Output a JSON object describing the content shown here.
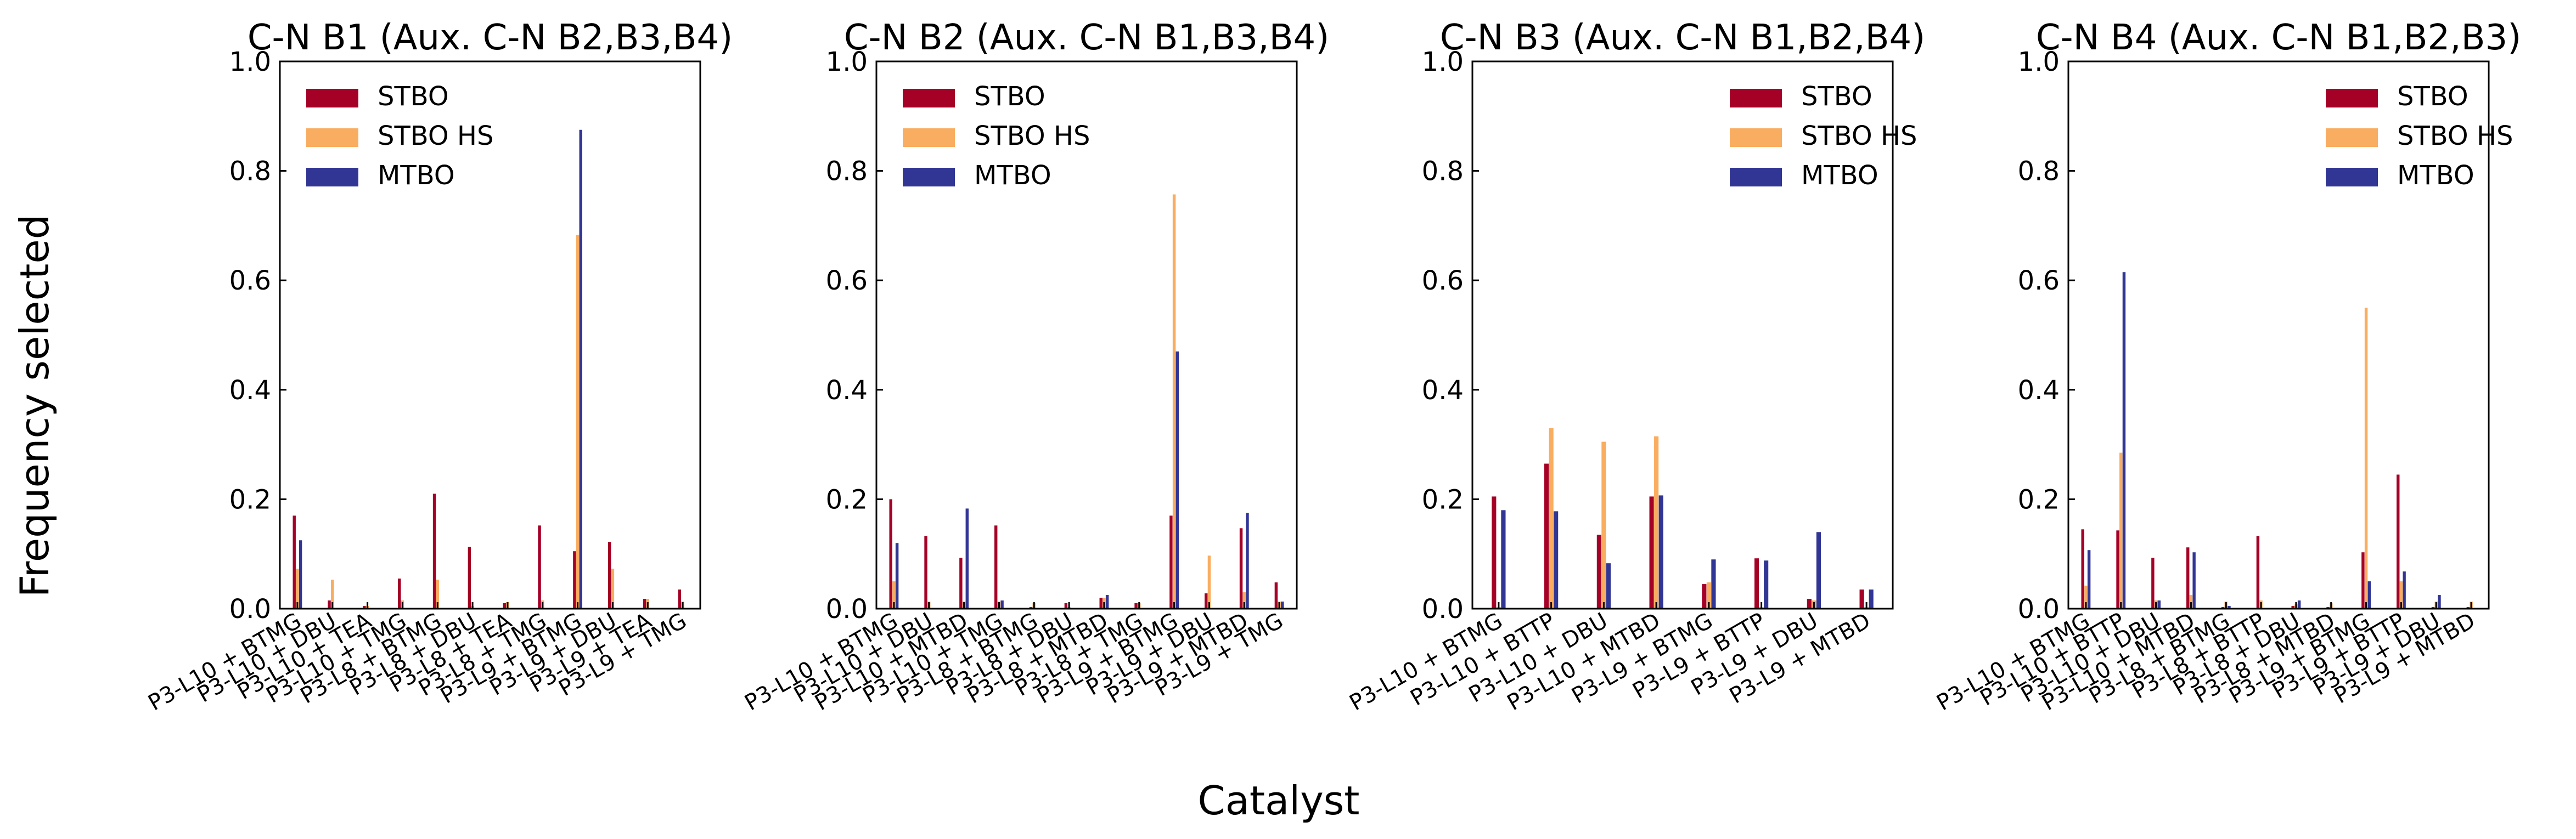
{
  "figure": {
    "ylabel": "Frequency selected",
    "xlabel": "Catalyst"
  },
  "colors": {
    "STBO": "#a50026",
    "STBO HS": "#f9ad60",
    "MTBO": "#313695"
  },
  "chart_data": [
    {
      "type": "bar",
      "title": "C-N B1 (Aux. C-N B2,B3,B4)",
      "ylim": [
        0,
        1.0
      ],
      "yticks": [
        "0.0",
        "0.2",
        "0.4",
        "0.6",
        "0.8",
        "1.0"
      ],
      "legend_position": "upper-left",
      "categories": [
        "P3-L10 + BTMG",
        "P3-L10 + DBU",
        "P3-L10 + TEA",
        "P3-L10 + TMG",
        "P3-L8 + BTMG",
        "P3-L8 + DBU",
        "P3-L8 + TEA",
        "P3-L8 + TMG",
        "P3-L9 + BTMG",
        "P3-L9 + DBU",
        "P3-L9 + TEA",
        "P3-L9 + TMG"
      ],
      "series": [
        {
          "name": "STBO",
          "values": [
            0.17,
            0.015,
            0.005,
            0.055,
            0.21,
            0.113,
            0.01,
            0.152,
            0.105,
            0.122,
            0.018,
            0.035
          ]
        },
        {
          "name": "STBO HS",
          "values": [
            0.073,
            0.053,
            0.005,
            0.015,
            0.053,
            0.005,
            0.012,
            0.015,
            0.683,
            0.073,
            0.018,
            0.013
          ]
        },
        {
          "name": "MTBO",
          "values": [
            0.125,
            0.0,
            0.0,
            0.0,
            0.0,
            0.0,
            0.0,
            0.0,
            0.875,
            0.0,
            0.0,
            0.0
          ]
        }
      ]
    },
    {
      "type": "bar",
      "title": "C-N B2 (Aux. C-N B1,B3,B4)",
      "ylim": [
        0,
        1.0
      ],
      "yticks": [
        "0.0",
        "0.2",
        "0.4",
        "0.6",
        "0.8",
        "1.0"
      ],
      "legend_position": "upper-left",
      "categories": [
        "P3-L10 + BTMG",
        "P3-L10 + DBU",
        "P3-L10 + MTBD",
        "P3-L10 + TMG",
        "P3-L8 + BTMG",
        "P3-L8 + DBU",
        "P3-L8 + MTBD",
        "P3-L8 + TMG",
        "P3-L9 + BTMG",
        "P3-L9 + DBU",
        "P3-L9 + MTBD",
        "P3-L9 + TMG"
      ],
      "series": [
        {
          "name": "STBO",
          "values": [
            0.2,
            0.133,
            0.093,
            0.152,
            0.003,
            0.01,
            0.02,
            0.01,
            0.17,
            0.028,
            0.147,
            0.048
          ]
        },
        {
          "name": "STBO HS",
          "values": [
            0.05,
            0.013,
            0.013,
            0.013,
            0.01,
            0.003,
            0.02,
            0.01,
            0.757,
            0.097,
            0.03,
            0.013
          ]
        },
        {
          "name": "MTBO",
          "values": [
            0.12,
            0.0,
            0.183,
            0.015,
            0.0,
            0.0,
            0.025,
            0.0,
            0.47,
            0.0,
            0.175,
            0.013
          ]
        }
      ]
    },
    {
      "type": "bar",
      "title": "C-N B3 (Aux. C-N B1,B2,B4)",
      "ylim": [
        0,
        1.0
      ],
      "yticks": [
        "0.0",
        "0.2",
        "0.4",
        "0.6",
        "0.8",
        "1.0"
      ],
      "legend_position": "upper-right",
      "categories": [
        "P3-L10 + BTMG",
        "P3-L10 + BTTP",
        "P3-L10 + DBU",
        "P3-L10 + MTBD",
        "P3-L9 + BTMG",
        "P3-L9 + BTTP",
        "P3-L9 + DBU",
        "P3-L9 + MTBD"
      ],
      "series": [
        {
          "name": "STBO",
          "values": [
            0.205,
            0.265,
            0.135,
            0.205,
            0.045,
            0.092,
            0.018,
            0.035
          ]
        },
        {
          "name": "STBO HS",
          "values": [
            0.003,
            0.33,
            0.305,
            0.315,
            0.048,
            0.003,
            0.015,
            0.003
          ]
        },
        {
          "name": "MTBO",
          "values": [
            0.18,
            0.178,
            0.083,
            0.207,
            0.09,
            0.088,
            0.14,
            0.035
          ]
        }
      ]
    },
    {
      "type": "bar",
      "title": "C-N B4 (Aux. C-N B1,B2,B3)",
      "ylim": [
        0,
        1.0
      ],
      "yticks": [
        "0.0",
        "0.2",
        "0.4",
        "0.6",
        "0.8",
        "1.0"
      ],
      "legend_position": "upper-right",
      "categories": [
        "P3-L10 + BTMG",
        "P3-L10 + BTTP",
        "P3-L10 + DBU",
        "P3-L10 + MTBD",
        "P3-L8 + BTMG",
        "P3-L8 + BTTP",
        "P3-L8 + DBU",
        "P3-L8 + MTBD",
        "P3-L9 + BTMG",
        "P3-L9 + BTTP",
        "P3-L9 + DBU",
        "P3-L9 + MTBD"
      ],
      "series": [
        {
          "name": "STBO",
          "values": [
            0.145,
            0.143,
            0.093,
            0.112,
            0.003,
            0.133,
            0.005,
            0.003,
            0.103,
            0.245,
            0.003,
            0.003
          ]
        },
        {
          "name": "STBO HS",
          "values": [
            0.042,
            0.285,
            0.015,
            0.025,
            0.013,
            0.015,
            0.008,
            0.01,
            0.55,
            0.05,
            0.013,
            0.013
          ]
        },
        {
          "name": "MTBO",
          "values": [
            0.107,
            0.615,
            0.015,
            0.103,
            0.005,
            0.0,
            0.015,
            0.0,
            0.05,
            0.068,
            0.025,
            0.0
          ]
        }
      ]
    }
  ]
}
